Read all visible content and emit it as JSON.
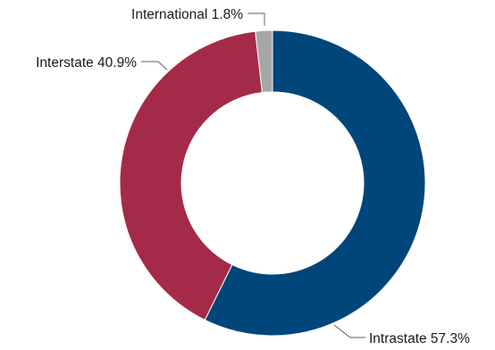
{
  "chart_data": {
    "type": "pie",
    "donut": true,
    "categories": [
      "Intrastate",
      "Interstate",
      "International"
    ],
    "values": [
      57.3,
      40.9,
      1.8
    ],
    "value_suffix": "%",
    "labels": [
      "Intrastate 57.3%",
      "Interstate 40.9%",
      "International 1.8%"
    ],
    "colors": [
      "#00467a",
      "#a52a47",
      "#a6a6a6"
    ],
    "start_angle_deg": 0,
    "direction": "clockwise",
    "title": "",
    "legend": "none"
  }
}
